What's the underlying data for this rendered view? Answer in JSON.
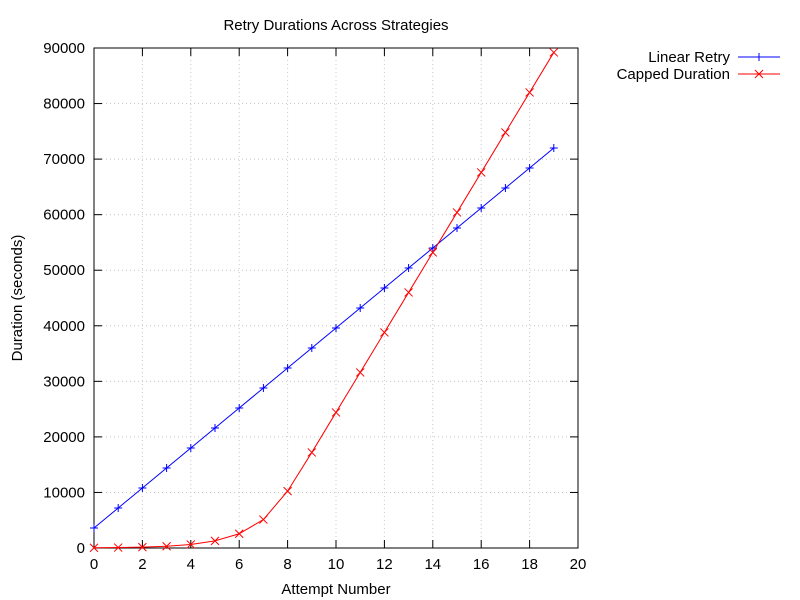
{
  "chart_data": {
    "type": "line",
    "title": "Retry Durations Across Strategies",
    "xlabel": "Attempt Number",
    "ylabel": "Duration (seconds)",
    "xlim": [
      0,
      20
    ],
    "ylim": [
      0,
      90000
    ],
    "xticks": [
      0,
      2,
      4,
      6,
      8,
      10,
      12,
      14,
      16,
      18,
      20
    ],
    "yticks": [
      0,
      10000,
      20000,
      30000,
      40000,
      50000,
      60000,
      70000,
      80000,
      90000
    ],
    "grid": true,
    "legend_position": "outside-top-right",
    "series": [
      {
        "name": "Linear Retry",
        "color": "#0000ff",
        "marker": "plus",
        "x": [
          0,
          1,
          2,
          3,
          4,
          5,
          6,
          7,
          8,
          9,
          10,
          11,
          12,
          13,
          14,
          15,
          16,
          17,
          18,
          19
        ],
        "values": [
          3600,
          7200,
          10800,
          14400,
          18000,
          21600,
          25200,
          28800,
          32400,
          36000,
          39600,
          43200,
          46800,
          50400,
          54000,
          57600,
          61200,
          64800,
          68400,
          72000
        ]
      },
      {
        "name": "Capped Duration",
        "color": "#ff0000",
        "marker": "cross",
        "x": [
          0,
          1,
          2,
          3,
          4,
          5,
          6,
          7,
          8,
          9,
          10,
          11,
          12,
          13,
          14,
          15,
          16,
          17,
          18,
          19
        ],
        "values": [
          40,
          80,
          160,
          320,
          640,
          1280,
          2560,
          5120,
          10240,
          17200,
          24400,
          31600,
          38800,
          46000,
          53200,
          60400,
          67600,
          74800,
          82000,
          89200
        ]
      }
    ]
  }
}
